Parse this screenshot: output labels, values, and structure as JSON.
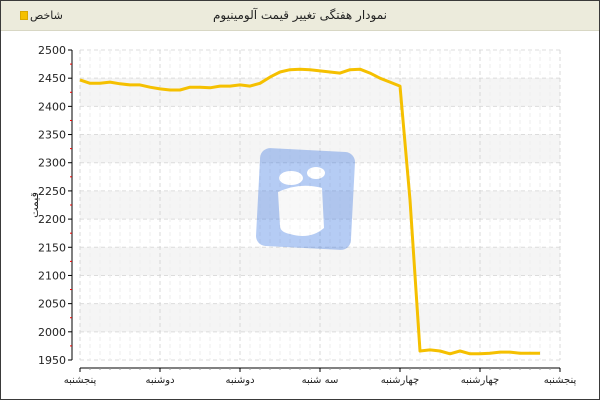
{
  "header": {
    "title": "نمودار هفتگی تغییر قیمت آلومینیوم"
  },
  "legend": {
    "label": "شاخص",
    "color": "#f5c000"
  },
  "chart_data": {
    "type": "line",
    "title": "نمودار هفتگی تغییر قیمت آلومینیوم",
    "ylabel": "قیمت",
    "xlabel": "",
    "ylim": [
      1950,
      2500
    ],
    "yticks": [
      1950,
      2000,
      2050,
      2100,
      2150,
      2200,
      2250,
      2300,
      2350,
      2400,
      2450,
      2500
    ],
    "xtick_labels": [
      "پنجشنبه",
      "دوشنبه",
      "دوشنبه",
      "سه شنبه",
      "چهارشنبه",
      "چهارشنبه",
      "پنجشنبه"
    ],
    "grid": true,
    "legend_position": "top-left",
    "series": [
      {
        "name": "شاخص",
        "color": "#f5c000",
        "values": [
          2447,
          2441,
          2441,
          2443,
          2440,
          2438,
          2438,
          2434,
          2431,
          2429,
          2429,
          2434,
          2434,
          2433,
          2436,
          2436,
          2438,
          2436,
          2441,
          2452,
          2461,
          2465,
          2466,
          2465,
          2463,
          2461,
          2459,
          2465,
          2466,
          2459,
          2450,
          2443,
          2436,
          2234,
          1966,
          1968,
          1966,
          1961,
          1966,
          1961,
          1961,
          1962,
          1964,
          1964,
          1962,
          1962,
          1962
        ]
      }
    ]
  }
}
